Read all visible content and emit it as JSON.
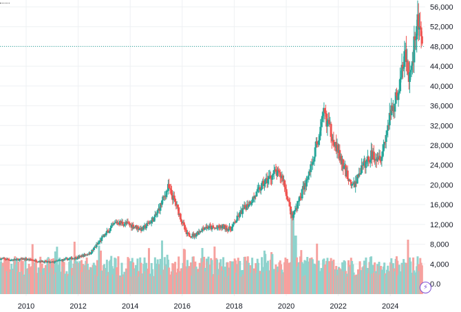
{
  "chart_data": {
    "type": "candlestick",
    "grid": true,
    "price_axis": {
      "position": "right",
      "range": [
        0,
        57000
      ],
      "ticks": [
        "56,000",
        "52,000",
        "48,000",
        "44,000",
        "40,000",
        "36,000",
        "32,000",
        "28,000",
        "24,000",
        "20,000",
        "16,000",
        "12,000",
        "8,000",
        "4,000",
        "0.0"
      ]
    },
    "time_axis": {
      "range": [
        2009.0,
        2025.6
      ],
      "ticks": [
        "2010",
        "2012",
        "2014",
        "2016",
        "2018",
        "2020",
        "2022",
        "2024"
      ]
    },
    "last_price_line": 48000,
    "colors": {
      "up": "#26a69a",
      "down": "#ef5350",
      "vol_up": "#8fd3cd",
      "vol_down": "#f6a19e",
      "grid": "#eef0f3",
      "price_line": "#26a69a"
    },
    "icons": {
      "corner": "dotted-line-icon",
      "badge": "lightning-icon"
    },
    "anchors": [
      [
        2009.0,
        5100
      ],
      [
        2009.5,
        4800
      ],
      [
        2010.0,
        5000
      ],
      [
        2010.5,
        4600
      ],
      [
        2011.0,
        4300
      ],
      [
        2011.5,
        4900
      ],
      [
        2012.0,
        5300
      ],
      [
        2012.5,
        6200
      ],
      [
        2013.0,
        9500
      ],
      [
        2013.5,
        12500
      ],
      [
        2014.0,
        12000
      ],
      [
        2014.5,
        11000
      ],
      [
        2015.0,
        13500
      ],
      [
        2015.5,
        19500
      ],
      [
        2015.8,
        16000
      ],
      [
        2016.2,
        10000
      ],
      [
        2016.5,
        9800
      ],
      [
        2016.9,
        11500
      ],
      [
        2017.3,
        11200
      ],
      [
        2017.6,
        11500
      ],
      [
        2017.9,
        11000
      ],
      [
        2018.3,
        14500
      ],
      [
        2018.8,
        17500
      ],
      [
        2019.2,
        20500
      ],
      [
        2019.6,
        22500
      ],
      [
        2019.9,
        21500
      ],
      [
        2020.1,
        17000
      ],
      [
        2020.25,
        13500
      ],
      [
        2020.5,
        16500
      ],
      [
        2020.9,
        22000
      ],
      [
        2021.3,
        30000
      ],
      [
        2021.5,
        34500
      ],
      [
        2021.8,
        30000
      ],
      [
        2022.2,
        24000
      ],
      [
        2022.6,
        19500
      ],
      [
        2022.9,
        23000
      ],
      [
        2023.3,
        26000
      ],
      [
        2023.7,
        26000
      ],
      [
        2023.9,
        31000
      ],
      [
        2024.1,
        35000
      ],
      [
        2024.4,
        40000
      ],
      [
        2024.6,
        47000
      ],
      [
        2024.75,
        41000
      ],
      [
        2024.9,
        46000
      ],
      [
        2025.1,
        54000
      ],
      [
        2025.3,
        45000
      ],
      [
        2025.6,
        48000
      ]
    ]
  }
}
